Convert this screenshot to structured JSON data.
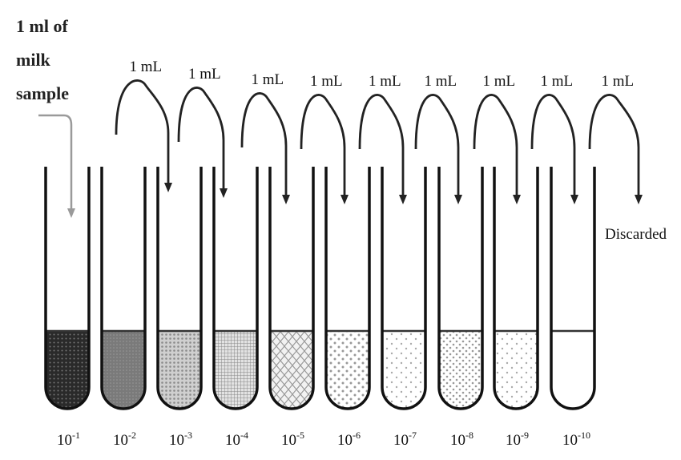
{
  "source": {
    "lines": [
      "1 ml of",
      "milk",
      "sample"
    ],
    "arrow_color": "#9a9a9a"
  },
  "transfer_label": "1 mL",
  "discard_label": "Discarded",
  "tubes": [
    {
      "label_base": "10",
      "label_exp": "-1",
      "fill": "dense-dark"
    },
    {
      "label_base": "10",
      "label_exp": "-2",
      "fill": "medium-grey"
    },
    {
      "label_base": "10",
      "label_exp": "-3",
      "fill": "light-stipple"
    },
    {
      "label_base": "10",
      "label_exp": "-4",
      "fill": "grid"
    },
    {
      "label_base": "10",
      "label_exp": "-5",
      "fill": "diamond"
    },
    {
      "label_base": "10",
      "label_exp": "-6",
      "fill": "large-dots"
    },
    {
      "label_base": "10",
      "label_exp": "-7",
      "fill": "sparse-dots"
    },
    {
      "label_base": "10",
      "label_exp": "-8",
      "fill": "dots"
    },
    {
      "label_base": "10",
      "label_exp": "-9",
      "fill": "sparse-dots"
    },
    {
      "label_base": "10",
      "label_exp": "-10",
      "fill": "none"
    }
  ],
  "transfers": 9
}
